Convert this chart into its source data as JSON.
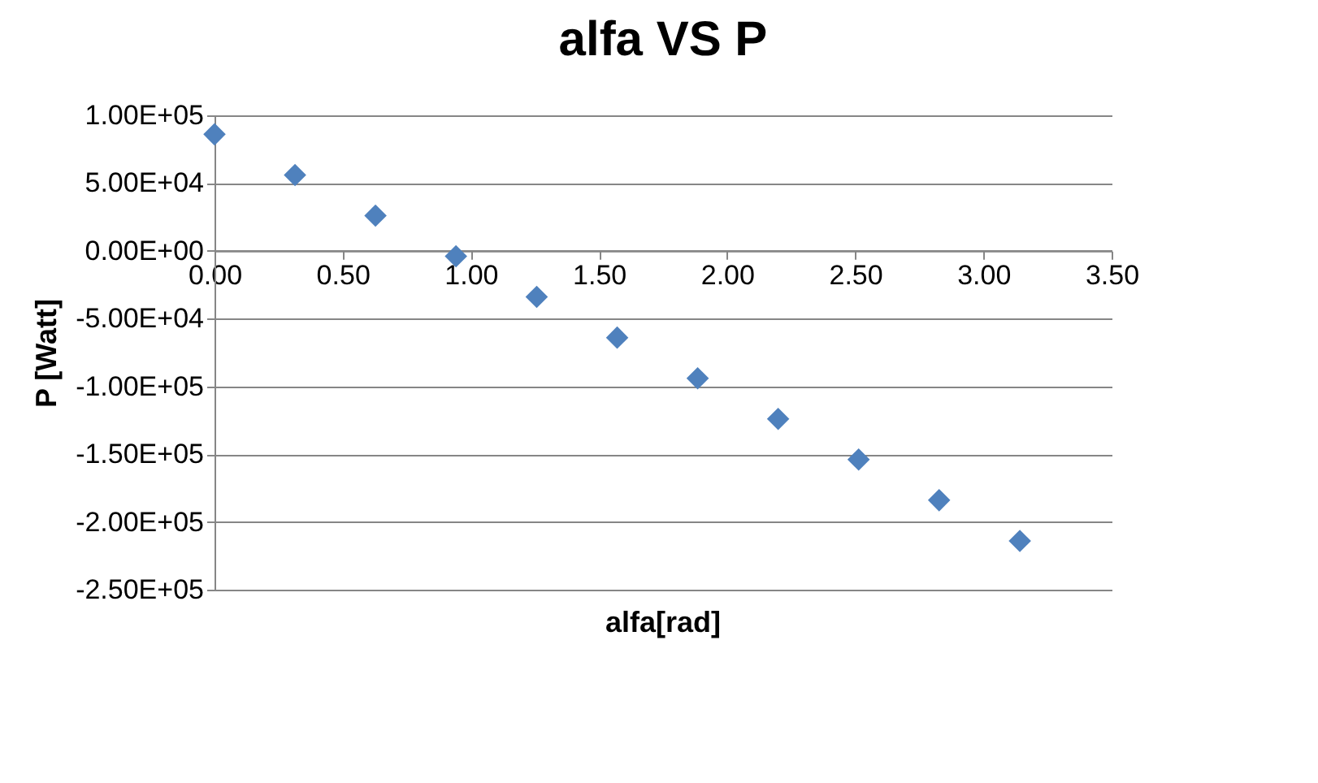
{
  "chart_data": {
    "type": "scatter",
    "title": "alfa VS P",
    "xlabel": "alfa[rad]",
    "ylabel": "P [Watt]",
    "x": [
      0,
      0.314,
      0.628,
      0.942,
      1.257,
      1.571,
      1.885,
      2.199,
      2.513,
      2.827,
      3.142
    ],
    "series": [
      {
        "color": "#4f81bd",
        "values": [
          86000,
          56000,
          26000,
          -4000,
          -34000,
          -64000,
          -94000,
          -124000,
          -154000,
          -184000,
          -214000
        ]
      }
    ],
    "xlim": [
      0,
      3.5
    ],
    "xticks": [
      {
        "value": 0,
        "label": "0.00"
      },
      {
        "value": 0.5,
        "label": "0.50"
      },
      {
        "value": 1,
        "label": "1.00"
      },
      {
        "value": 1.5,
        "label": "1.50"
      },
      {
        "value": 2,
        "label": "2.00"
      },
      {
        "value": 2.5,
        "label": "2.50"
      },
      {
        "value": 3,
        "label": "3.00"
      },
      {
        "value": 3.5,
        "label": "3.50"
      }
    ],
    "ylim": [
      -250000,
      100000
    ],
    "yticks": [
      {
        "value": 100000,
        "label": "1.00E+05"
      },
      {
        "value": 50000,
        "label": "5.00E+04"
      },
      {
        "value": 0,
        "label": "0.00E+00"
      },
      {
        "value": -50000,
        "label": "-5.00E+04"
      },
      {
        "value": -100000,
        "label": "-1.00E+05"
      },
      {
        "value": -150000,
        "label": "-1.50E+05"
      },
      {
        "value": -200000,
        "label": "-2.00E+05"
      },
      {
        "value": -250000,
        "label": "-2.50E+05"
      }
    ],
    "grid": "y",
    "marker": "diamond",
    "legend": false
  }
}
